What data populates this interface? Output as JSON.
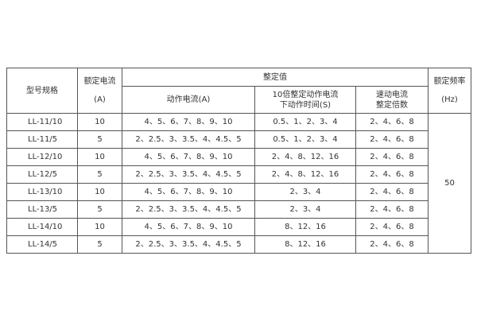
{
  "table": {
    "header": {
      "model": "型号规格",
      "current": [
        "额定电流",
        "(A)"
      ],
      "setting": "整定值",
      "action_current": "动作电流(A)",
      "time": [
        "10倍整定动作电流",
        "下动作时间(S)"
      ],
      "quick": [
        "速动电流",
        "整定倍数"
      ],
      "freq": [
        "额定频率",
        "(Hz)"
      ]
    },
    "rows": [
      [
        "LL-11/10",
        "10",
        "4、5、6、7、8、9、10",
        "0.5、1、2、3、4",
        "2、4、6、8"
      ],
      [
        "LL-11/5",
        "5",
        "2、2.5、3、3.5、4、4.5、5",
        "0.5、1、2、3、4",
        "2、4、6、8"
      ],
      [
        "LL-12/10",
        "10",
        "4、5、6、7、8、9、10",
        "2、4、8、12、16",
        "2、4、6、8"
      ],
      [
        "LL-12/5",
        "5",
        "2、2.5、3、3.5、4、4.5、5",
        "2、4、8、12、16",
        "2、4、6、8"
      ],
      [
        "LL-13/10",
        "10",
        "4、5、6、7、8、9、10",
        "2、3、4",
        "2、4、6、8"
      ],
      [
        "LL-13/5",
        "5",
        "2、2.5、3、3.5、4、4.5、5",
        "2、3、4",
        "2、4、6、8"
      ],
      [
        "LL-14/10",
        "10",
        "4、5、6、7、8、9、10",
        "8、12、16",
        "2、4、6、8"
      ],
      [
        "LL-14/5",
        "5",
        "2、2.5、3、3.5、4、4.5、5",
        "8、12、16",
        "2、4、6、8"
      ]
    ],
    "frequency": "50"
  }
}
